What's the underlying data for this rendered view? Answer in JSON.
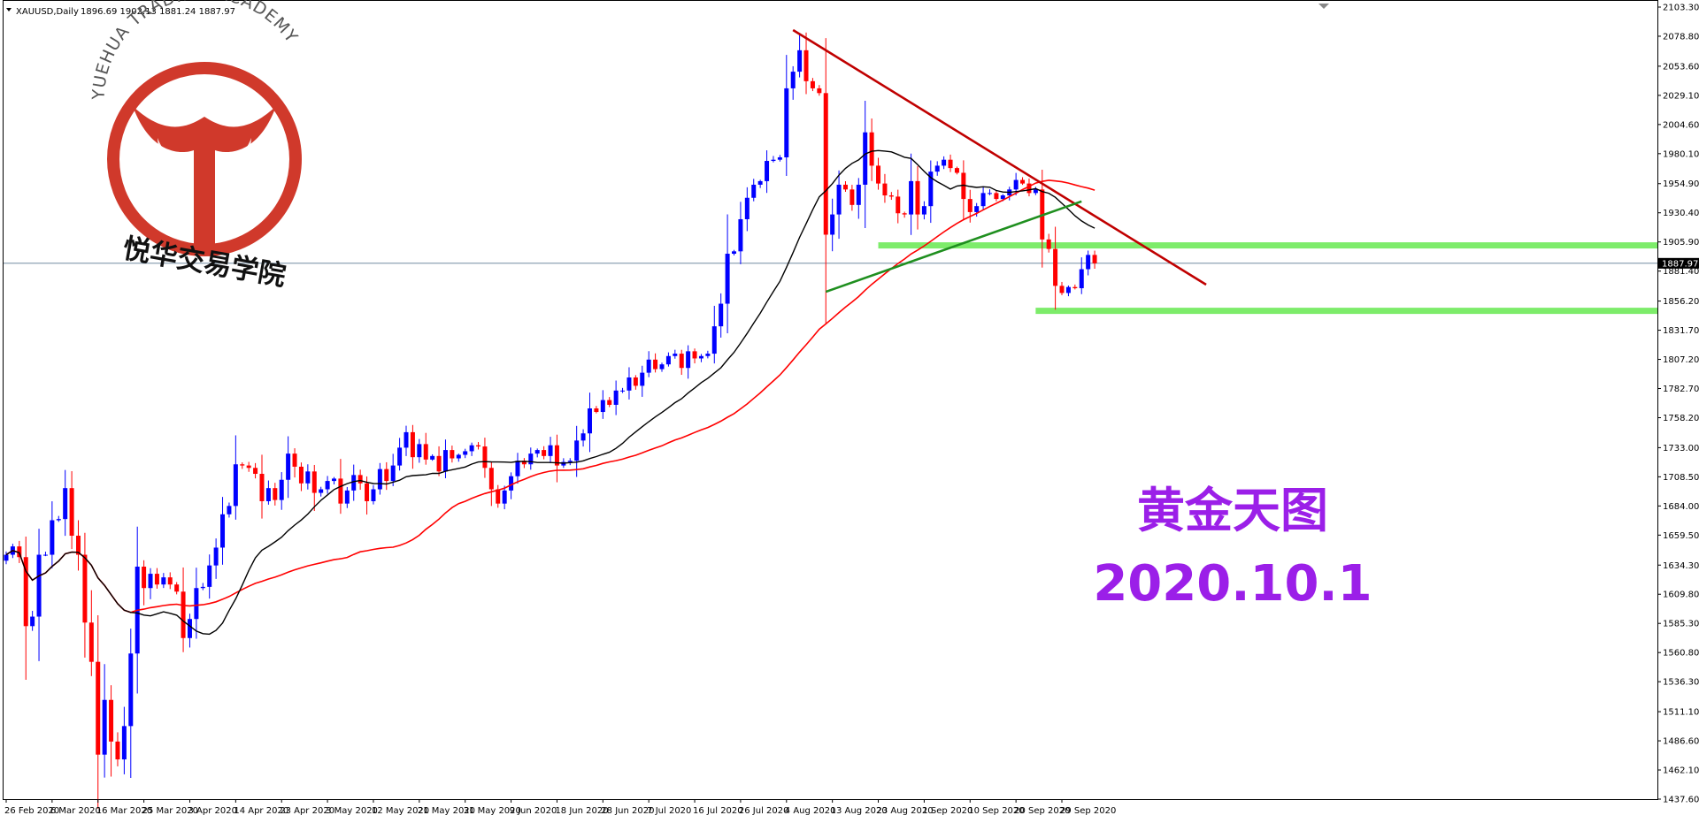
{
  "header": {
    "symbol": "XAUUSD,Daily",
    "ohlc": "1896.69 1902.13 1881.24 1887.97"
  },
  "watermark": {
    "academy_en": "YUEHUA TRADING ACADEMY",
    "academy_cn": "悦华交易学院"
  },
  "overlay": {
    "title_cn": "黄金天图",
    "date": "2020.10.1",
    "color": "#9b1fe8"
  },
  "current_price_label": "1887.97",
  "colors": {
    "bull": "#0000ff",
    "bear": "#ff0000",
    "ma_fast": "#000000",
    "ma_slow": "#ff0000",
    "trend_down": "#c00000",
    "trend_up": "#1f8f1f",
    "zone": "#7dec6a",
    "price_line": "#5f7a94",
    "logo": "#d0392b"
  },
  "chart_data": {
    "type": "candlestick",
    "symbol": "XAUUSD",
    "timeframe": "Daily",
    "ylim": [
      1437.6,
      2103.3
    ],
    "y_ticks": [
      "2103.30",
      "2078.80",
      "2053.60",
      "2029.10",
      "2004.60",
      "1980.10",
      "1954.90",
      "1930.40",
      "1905.90",
      "1881.40",
      "1856.20",
      "1831.70",
      "1807.20",
      "1782.70",
      "1758.20",
      "1733.00",
      "1708.50",
      "1684.00",
      "1659.50",
      "1634.30",
      "1609.80",
      "1585.30",
      "1560.80",
      "1536.30",
      "1511.10",
      "1486.60",
      "1462.10",
      "1437.60"
    ],
    "x_labels": [
      "26 Feb 2020",
      "6 Mar 2020",
      "16 Mar 2020",
      "25 Mar 2020",
      "3 Apr 2020",
      "14 Apr 2020",
      "23 Apr 2020",
      "3 May 2020",
      "12 May 2020",
      "21 May 2020",
      "31 May 2020",
      "9 Jun 2020",
      "18 Jun 2020",
      "28 Jun 2020",
      "7 Jul 2020",
      "16 Jul 2020",
      "26 Jul 2020",
      "4 Aug 2020",
      "13 Aug 2020",
      "23 Aug 2020",
      "1 Sep 2020",
      "10 Sep 2020",
      "20 Sep 2020",
      "29 Sep 2020"
    ],
    "current_price": 1887.97,
    "closes": [
      1643,
      1650,
      1641,
      1583,
      1591,
      1643,
      1643,
      1672,
      1673,
      1699,
      1659,
      1643,
      1586,
      1553,
      1475,
      1521,
      1486,
      1471,
      1499,
      1560,
      1633,
      1615,
      1627,
      1618,
      1624,
      1618,
      1612,
      1573,
      1589,
      1615,
      1616,
      1634,
      1649,
      1677,
      1684,
      1719,
      1718,
      1716,
      1711,
      1688,
      1699,
      1689,
      1706,
      1728,
      1717,
      1703,
      1713,
      1695,
      1698,
      1705,
      1707,
      1686,
      1697,
      1710,
      1703,
      1688,
      1698,
      1715,
      1705,
      1718,
      1733,
      1746,
      1725,
      1736,
      1723,
      1726,
      1713,
      1731,
      1724,
      1727,
      1730,
      1735,
      1734,
      1716,
      1698,
      1686,
      1697,
      1709,
      1722,
      1719,
      1728,
      1731,
      1726,
      1735,
      1718,
      1721,
      1722,
      1739,
      1745,
      1766,
      1763,
      1773,
      1769,
      1781,
      1781,
      1792,
      1785,
      1796,
      1807,
      1799,
      1803,
      1810,
      1812,
      1800,
      1814,
      1808,
      1810,
      1812,
      1835,
      1854,
      1896,
      1898,
      1925,
      1943,
      1954,
      1957,
      1974,
      1975,
      1977,
      2035,
      2049,
      2067,
      2041,
      2035,
      2031,
      1912,
      1929,
      1954,
      1950,
      1937,
      1954,
      1998,
      1970,
      1955,
      1945,
      1944,
      1930,
      1929,
      1957,
      1929,
      1936,
      1965,
      1970,
      1975,
      1968,
      1964,
      1942,
      1931,
      1936,
      1947,
      1947,
      1942,
      1945,
      1950,
      1958,
      1955,
      1947,
      1950,
      1908,
      1900,
      1869,
      1863,
      1868,
      1867,
      1883,
      1895,
      1887.97
    ],
    "ma_fast_period": 20,
    "ma_slow_period": 50,
    "support_zones": [
      1903,
      1848
    ],
    "trend_lines": [
      {
        "name": "",
        "from": [
          "4 Aug 2020",
          2084
        ],
        "to": [
          "10 Oct 2020",
          1870
        ]
      },
      {
        "name": "",
        "from": [
          "12 Aug 2020",
          1864
        ],
        "to": [
          "1 Oct 2020",
          1940
        ]
      }
    ]
  }
}
